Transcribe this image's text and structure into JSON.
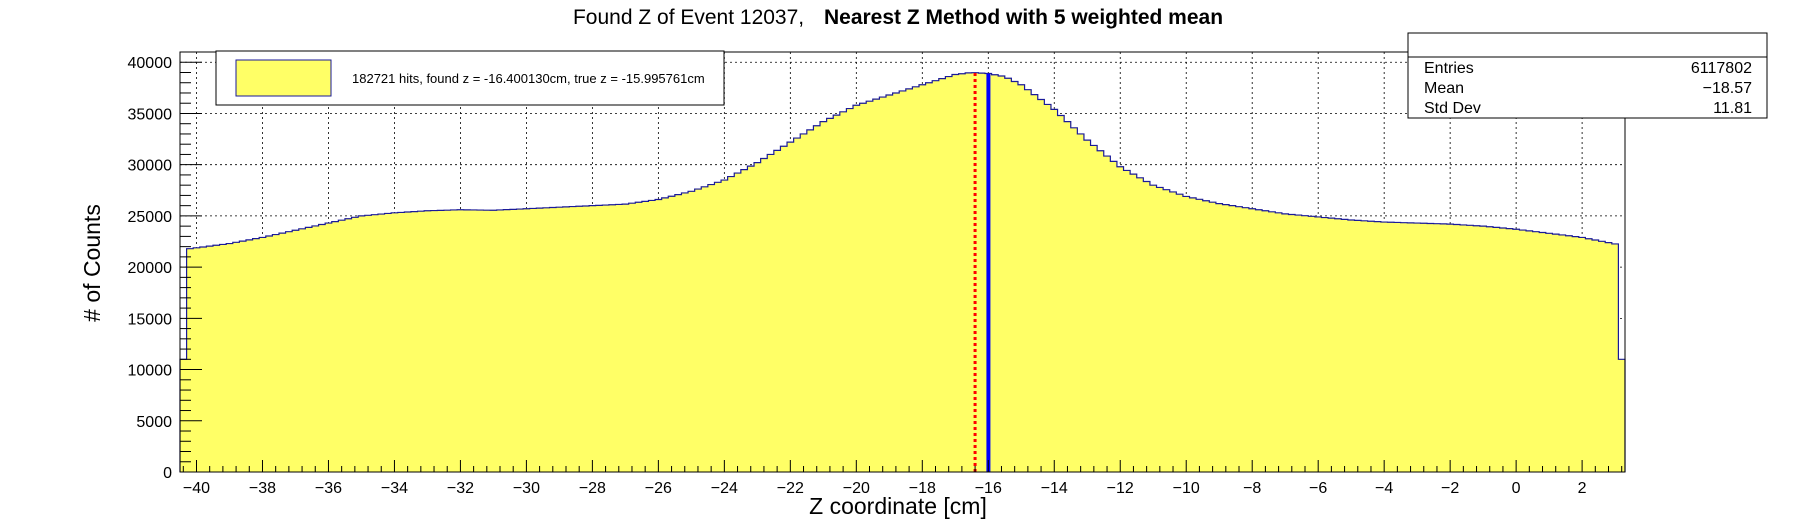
{
  "chart_data": {
    "type": "histogram",
    "title_prefix": "Found Z of Event 12037,",
    "title_bold": "Nearest Z Method with 5 weighted mean",
    "xlabel": "Z coordinate [cm]",
    "ylabel": "# of Counts",
    "xlim": [
      -40.5,
      3.3
    ],
    "ylim": [
      0,
      41000
    ],
    "x_ticks": [
      -40,
      -38,
      -36,
      -34,
      -32,
      -30,
      -28,
      -26,
      -24,
      -22,
      -20,
      -18,
      -16,
      -14,
      -12,
      -10,
      -8,
      -6,
      -4,
      -2,
      0,
      2
    ],
    "x_tick_labels": [
      "−40",
      "−38",
      "−36",
      "−34",
      "−32",
      "−30",
      "−28",
      "−26",
      "−24",
      "−22",
      "−20",
      "−18",
      "−16",
      "−14",
      "−12",
      "−10",
      "−8",
      "−6",
      "−4",
      "−2",
      "0",
      "2"
    ],
    "y_ticks": [
      0,
      5000,
      10000,
      15000,
      20000,
      25000,
      30000,
      35000,
      40000
    ],
    "y_tick_labels": [
      "0",
      "5000",
      "10000",
      "15000",
      "20000",
      "25000",
      "30000",
      "35000",
      "40000"
    ],
    "grid": true,
    "fill_color": "#ffff66",
    "line_color": "#1a1a99",
    "bin_width": 0.2,
    "profile": [
      [
        -40.2,
        21800
      ],
      [
        -39,
        22300
      ],
      [
        -38,
        22900
      ],
      [
        -37,
        23600
      ],
      [
        -36,
        24300
      ],
      [
        -35,
        25000
      ],
      [
        -34,
        25300
      ],
      [
        -33,
        25500
      ],
      [
        -32,
        25600
      ],
      [
        -31,
        25550
      ],
      [
        -30,
        25700
      ],
      [
        -29,
        25850
      ],
      [
        -28,
        26000
      ],
      [
        -27,
        26150
      ],
      [
        -26,
        26600
      ],
      [
        -25,
        27400
      ],
      [
        -24,
        28500
      ],
      [
        -23,
        30200
      ],
      [
        -22,
        32200
      ],
      [
        -21,
        34200
      ],
      [
        -20,
        35800
      ],
      [
        -19,
        36800
      ],
      [
        -18,
        37800
      ],
      [
        -17,
        38800
      ],
      [
        -16.5,
        39000
      ],
      [
        -16,
        38900
      ],
      [
        -15.5,
        38600
      ],
      [
        -15,
        37800
      ],
      [
        -14,
        35400
      ],
      [
        -13,
        32400
      ],
      [
        -12,
        29800
      ],
      [
        -11,
        28000
      ],
      [
        -10,
        26900
      ],
      [
        -9,
        26200
      ],
      [
        -8,
        25700
      ],
      [
        -7,
        25200
      ],
      [
        -6,
        24900
      ],
      [
        -5,
        24600
      ],
      [
        -4,
        24400
      ],
      [
        -3,
        24300
      ],
      [
        -2,
        24200
      ],
      [
        -1,
        24000
      ],
      [
        0,
        23700
      ],
      [
        1,
        23300
      ],
      [
        2,
        22900
      ],
      [
        3.1,
        22200
      ]
    ],
    "edge_bins": [
      {
        "x": -40.4,
        "value": 11000
      },
      {
        "x": 3.2,
        "value": 11000
      }
    ],
    "markers": [
      {
        "label": "found z",
        "x": -16.40013,
        "color": "#ff0000",
        "style": "dotted"
      },
      {
        "label": "true z",
        "x": -15.995761,
        "color": "#0000ff",
        "style": "solid"
      }
    ],
    "legend": {
      "text": "182721 hits, found z = -16.400130cm, true z = -15.995761cm",
      "swatch_color": "#ffff66",
      "placement": "top-left"
    },
    "stats": {
      "rows": [
        {
          "label": "Entries",
          "value": "6117802"
        },
        {
          "label": "Mean",
          "value": "−18.57"
        },
        {
          "label": "Std Dev",
          "value": "11.81"
        }
      ],
      "placement": "top-right"
    }
  }
}
